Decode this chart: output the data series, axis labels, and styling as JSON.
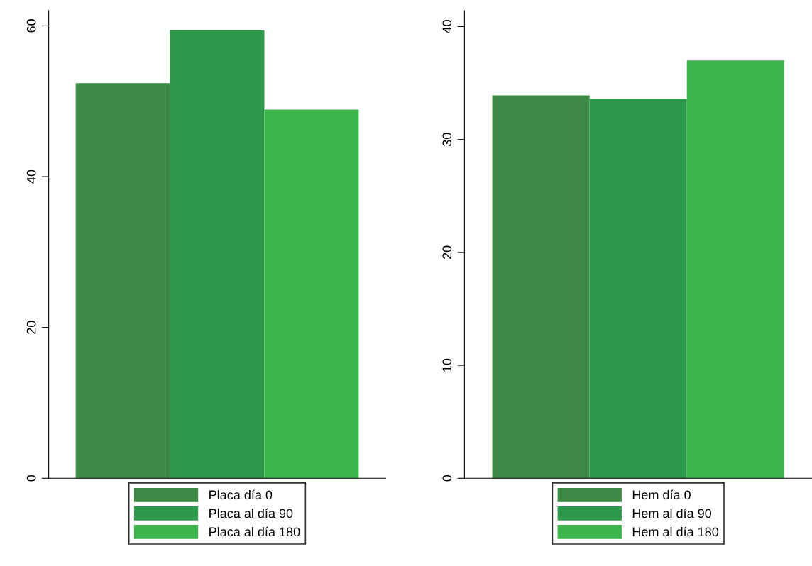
{
  "chart_data": [
    {
      "type": "bar",
      "categories": [
        null
      ],
      "series": [
        {
          "name": "Placa día 0",
          "color": "#3d8a47",
          "values": [
            52.4
          ]
        },
        {
          "name": "Placa al día 90",
          "color": "#2c9a4a",
          "values": [
            59.4
          ]
        },
        {
          "name": "Placa al día 180",
          "color": "#3cb54c",
          "values": [
            48.9
          ]
        }
      ],
      "ylim": [
        0,
        62
      ],
      "yticks": [
        0,
        20,
        40,
        60
      ],
      "grid": false,
      "legend": "bottom"
    },
    {
      "type": "bar",
      "categories": [
        null
      ],
      "series": [
        {
          "name": "Hem día 0",
          "color": "#3d8a47",
          "values": [
            33.9
          ]
        },
        {
          "name": "Hem al día 90",
          "color": "#2c9a4a",
          "values": [
            33.6
          ]
        },
        {
          "name": "Hem al día 180",
          "color": "#3cb54c",
          "values": [
            37.0
          ]
        }
      ],
      "ylim": [
        0,
        41.4
      ],
      "yticks": [
        0,
        10,
        20,
        30,
        40
      ],
      "grid": false,
      "legend": "bottom"
    }
  ]
}
